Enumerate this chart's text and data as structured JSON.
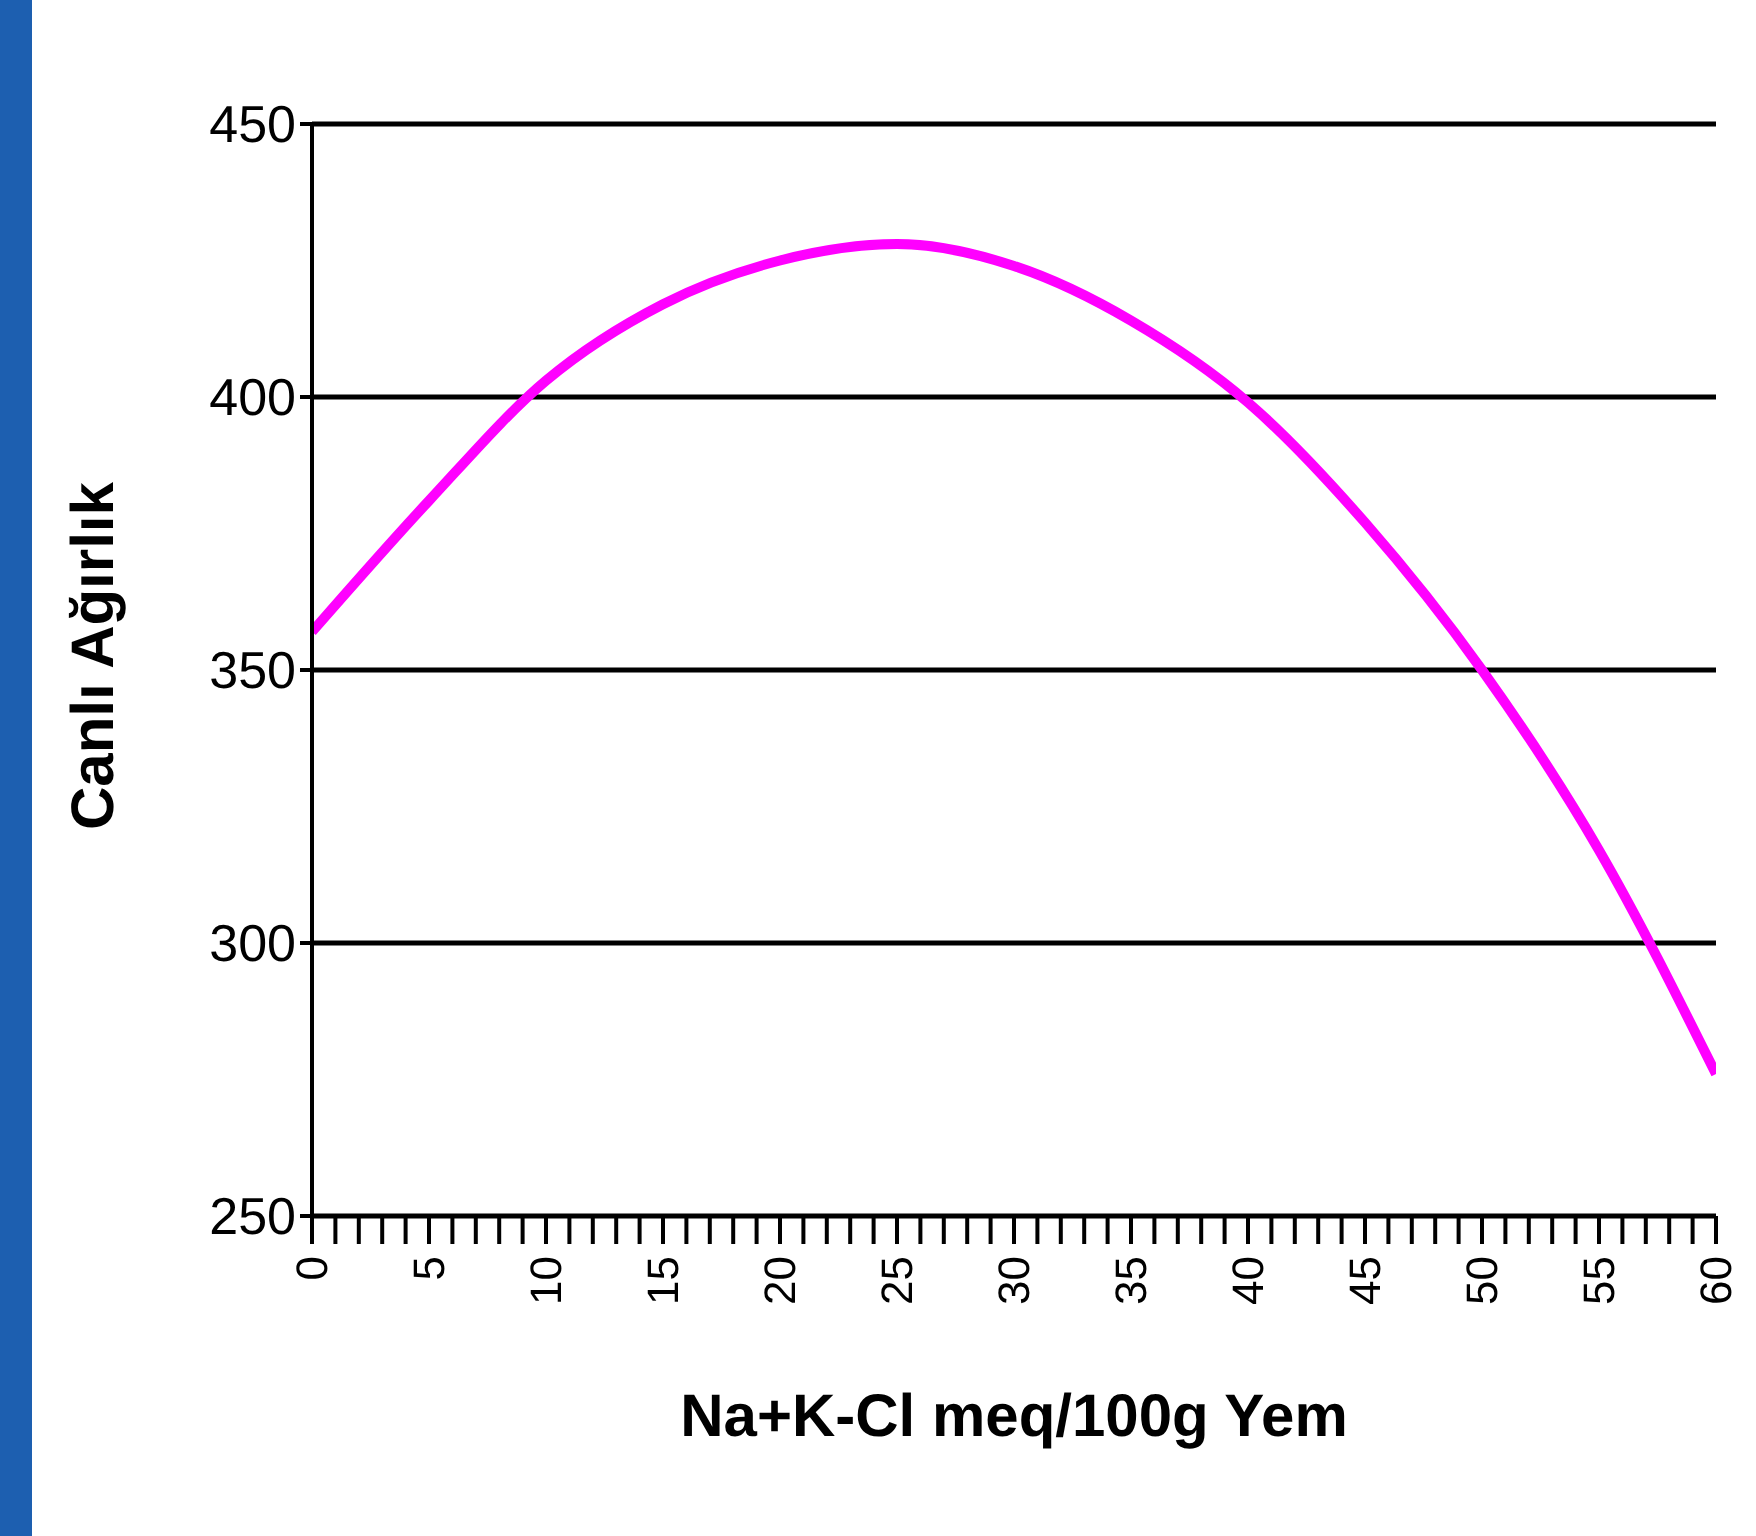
{
  "chart_data": {
    "type": "line",
    "xlabel": "Na+K-Cl meq/100g Yem",
    "ylabel": "Canlı Ağırlık",
    "x": [
      0,
      5,
      10,
      15,
      20,
      25,
      30,
      35,
      40,
      45,
      50,
      55,
      60
    ],
    "series": [
      {
        "color": "#ff00ff",
        "values": [
          357,
          381,
          403,
          417,
          425,
          428,
          424,
          414,
          399,
          377,
          350,
          317,
          276
        ]
      }
    ],
    "xlim": [
      0,
      60
    ],
    "xticks": [
      0,
      {
        "value": 1,
        "label": null
      },
      {
        "value": 2,
        "label": null
      },
      {
        "value": 3,
        "label": null
      },
      {
        "value": 4,
        "label": null
      },
      5,
      {
        "value": 6,
        "label": null
      },
      {
        "value": 7,
        "label": null
      },
      {
        "value": 8,
        "label": null
      },
      {
        "value": 9,
        "label": null
      },
      10,
      {
        "value": 11,
        "label": null
      },
      {
        "value": 12,
        "label": null
      },
      {
        "value": 13,
        "label": null
      },
      {
        "value": 14,
        "label": null
      },
      15,
      {
        "value": 16,
        "label": null
      },
      {
        "value": 17,
        "label": null
      },
      {
        "value": 18,
        "label": null
      },
      {
        "value": 19,
        "label": null
      },
      20,
      {
        "value": 21,
        "label": null
      },
      {
        "value": 22,
        "label": null
      },
      {
        "value": 23,
        "label": null
      },
      {
        "value": 24,
        "label": null
      },
      25,
      {
        "value": 26,
        "label": null
      },
      {
        "value": 27,
        "label": null
      },
      {
        "value": 28,
        "label": null
      },
      {
        "value": 29,
        "label": null
      },
      30,
      {
        "value": 31,
        "label": null
      },
      {
        "value": 32,
        "label": null
      },
      {
        "value": 33,
        "label": null
      },
      {
        "value": 34,
        "label": null
      },
      35,
      {
        "value": 36,
        "label": null
      },
      {
        "value": 37,
        "label": null
      },
      {
        "value": 38,
        "label": null
      },
      {
        "value": 39,
        "label": null
      },
      40,
      {
        "value": 41,
        "label": null
      },
      {
        "value": 42,
        "label": null
      },
      {
        "value": 43,
        "label": null
      },
      {
        "value": 44,
        "label": null
      },
      45,
      {
        "value": 46,
        "label": null
      },
      {
        "value": 47,
        "label": null
      },
      {
        "value": 48,
        "label": null
      },
      {
        "value": 49,
        "label": null
      },
      50,
      {
        "value": 51,
        "label": null
      },
      {
        "value": 52,
        "label": null
      },
      {
        "value": 53,
        "label": null
      },
      {
        "value": 54,
        "label": null
      },
      55,
      {
        "value": 56,
        "label": null
      },
      {
        "value": 57,
        "label": null
      },
      {
        "value": 58,
        "label": null
      },
      {
        "value": 59,
        "label": null
      },
      60
    ],
    "ylim": [
      250,
      450
    ],
    "yticks": [
      250,
      300,
      350,
      400,
      450
    ],
    "grid": "y",
    "legend": false,
    "marker": "none",
    "line_style": "solid"
  }
}
